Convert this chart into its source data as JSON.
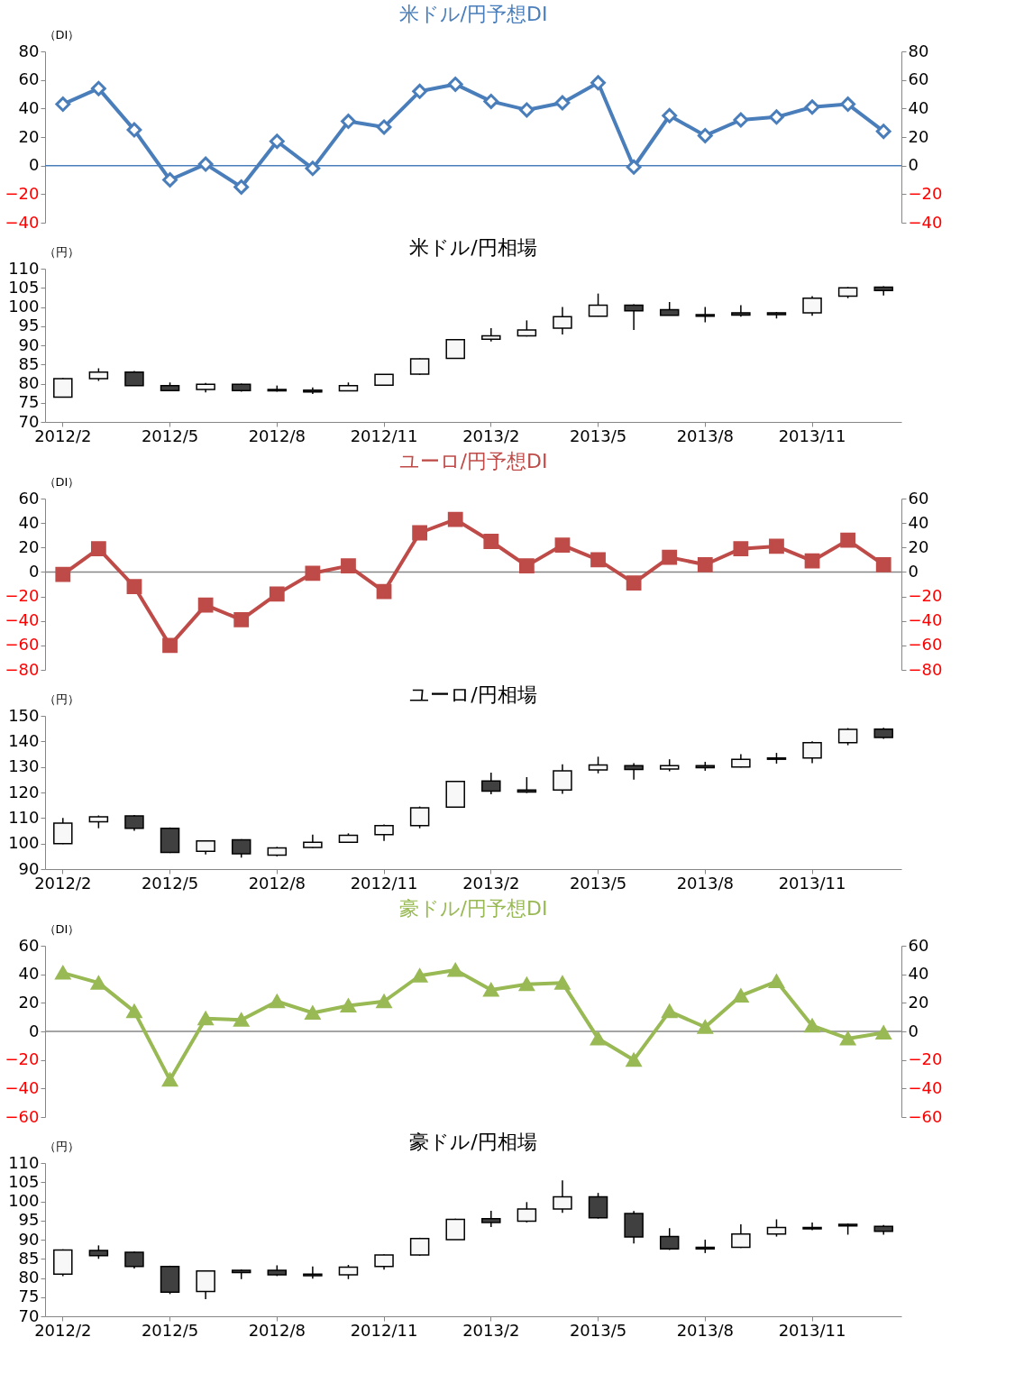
{
  "chart_data": [
    {
      "type": "line",
      "title": "米ドル/円予想DI",
      "ylabel": "（DI）",
      "categories": [
        "2012/2",
        null,
        null,
        "2012/5",
        null,
        null,
        "2012/8",
        null,
        null,
        "2012/11",
        null,
        null,
        "2013/2",
        null,
        null,
        "2013/5",
        null,
        null,
        "2013/8",
        null,
        null,
        "2013/11",
        null,
        null
      ],
      "series": [
        {
          "color": "#4a7ebb",
          "values": [
            43,
            54,
            25,
            -10,
            1,
            -15,
            17,
            -2,
            31,
            27,
            52,
            57,
            45,
            39,
            44,
            58,
            -1,
            35,
            21,
            32,
            34,
            41,
            43,
            24
          ]
        }
      ],
      "marker": "diamond",
      "ylim": [
        -40,
        80
      ],
      "yticks": [
        -40,
        -20,
        0,
        20,
        40,
        60,
        80
      ],
      "y2lim": [
        -40,
        80
      ],
      "y2ticks": [
        -40,
        -20,
        0,
        20,
        40,
        60,
        80
      ],
      "ref_lines": [
        {
          "axis": "y",
          "value": 0,
          "color": "#4a7ebb"
        }
      ],
      "tick_labels": "y",
      "grid": false
    },
    {
      "type": "candlestick",
      "title": "米ドル/円相場",
      "ylabel": "（円）",
      "categories": [
        "2012/2",
        null,
        null,
        "2012/5",
        null,
        null,
        "2012/8",
        null,
        null,
        "2012/11",
        null,
        null,
        "2013/2",
        null,
        null,
        "2013/5",
        null,
        null,
        "2013/8",
        null,
        null,
        "2013/11",
        null,
        null
      ],
      "ohlc": [
        [
          76.5,
          81.5,
          76.5,
          81.3
        ],
        [
          81.3,
          84,
          80.7,
          83
        ],
        [
          83,
          83.3,
          79.5,
          79.5
        ],
        [
          79.5,
          80.3,
          78,
          78.2
        ],
        [
          78.5,
          80.2,
          77.7,
          79.8
        ],
        [
          79.8,
          80,
          77.9,
          78.2
        ],
        [
          78.5,
          79.5,
          77.9,
          78.1
        ],
        [
          78.3,
          79,
          77.3,
          77.8
        ],
        [
          78.1,
          80.3,
          78,
          79.5
        ],
        [
          79.6,
          82.5,
          79.5,
          82.4
        ],
        [
          82.5,
          86.6,
          82.3,
          86.5
        ],
        [
          86.6,
          91.6,
          86.5,
          91.5
        ],
        [
          91.6,
          94.5,
          91,
          92.5
        ],
        [
          92.5,
          96.5,
          92.3,
          94
        ],
        [
          94.5,
          100,
          92.8,
          97.5
        ],
        [
          97.6,
          103.5,
          97.5,
          100.5
        ],
        [
          100.5,
          100.7,
          94,
          99
        ],
        [
          99.3,
          101.3,
          97.8,
          97.8
        ],
        [
          98,
          100,
          96,
          97.6
        ],
        [
          98.5,
          100.5,
          97.5,
          97.9
        ],
        [
          98.5,
          98.7,
          97,
          98
        ],
        [
          98.5,
          102.8,
          97.7,
          102.3
        ],
        [
          102.8,
          105.2,
          102.3,
          105
        ],
        [
          105.2,
          105.4,
          103,
          104.3
        ]
      ],
      "ylim": [
        70,
        110
      ],
      "yticks": [
        70,
        75,
        80,
        85,
        90,
        95,
        100,
        105,
        110
      ],
      "grid": false
    },
    {
      "type": "line",
      "title": "ユーロ/円予想DI",
      "ylabel": "（DI）",
      "categories": [
        "2012/2",
        null,
        null,
        "2012/5",
        null,
        null,
        "2012/8",
        null,
        null,
        "2012/11",
        null,
        null,
        "2013/2",
        null,
        null,
        "2013/5",
        null,
        null,
        "2013/8",
        null,
        null,
        "2013/11",
        null,
        null
      ],
      "series": [
        {
          "color": "#be4b48",
          "values": [
            -2,
            19,
            -12,
            -60,
            -27,
            -39,
            -18,
            -1,
            5,
            -16,
            32,
            43,
            25,
            5,
            22,
            10,
            -9,
            12,
            6,
            19,
            21,
            9,
            26,
            6
          ]
        }
      ],
      "marker": "square",
      "ylim": [
        -80,
        60
      ],
      "yticks": [
        -80,
        -60,
        -40,
        -20,
        0,
        20,
        40,
        60
      ],
      "y2lim": [
        -80,
        60
      ],
      "y2ticks": [
        -80,
        -60,
        -40,
        -20,
        0,
        20,
        40,
        60
      ],
      "ref_lines": [
        {
          "axis": "y",
          "value": 0,
          "color": "#868686"
        }
      ],
      "tick_labels": "y",
      "grid": false
    },
    {
      "type": "candlestick",
      "title": "ユーロ/円相場",
      "ylabel": "（円）",
      "categories": [
        "2012/2",
        null,
        null,
        "2012/5",
        null,
        null,
        "2012/8",
        null,
        null,
        "2012/11",
        null,
        null,
        "2013/2",
        null,
        null,
        "2013/5",
        null,
        null,
        "2013/8",
        null,
        null,
        "2013/11",
        null,
        null
      ],
      "ohlc": [
        [
          100,
          110,
          99.8,
          108
        ],
        [
          108.5,
          111,
          106,
          110.5
        ],
        [
          110.8,
          111.2,
          105,
          106
        ],
        [
          106,
          106.3,
          96.3,
          96.5
        ],
        [
          97,
          101.2,
          95.7,
          101
        ],
        [
          101.5,
          101.7,
          94.5,
          96
        ],
        [
          95.5,
          98.7,
          95,
          98.3
        ],
        [
          98.5,
          103.5,
          98.3,
          100.5
        ],
        [
          100.5,
          104,
          100.3,
          103.2
        ],
        [
          103.5,
          107.5,
          101,
          107
        ],
        [
          107,
          114.5,
          106,
          114
        ],
        [
          114.3,
          124.5,
          114,
          124.3
        ],
        [
          124.5,
          127.8,
          119.3,
          120.5
        ],
        [
          121,
          126,
          119.8,
          120.2
        ],
        [
          121,
          131,
          119.5,
          128.5
        ],
        [
          128.8,
          134,
          127.5,
          130.8
        ],
        [
          130.5,
          131.5,
          125,
          129
        ],
        [
          129.2,
          133,
          128.3,
          130.5
        ],
        [
          130.5,
          132,
          128.5,
          129.7
        ],
        [
          130,
          135,
          129.8,
          133
        ],
        [
          133.5,
          135.5,
          131.3,
          133
        ],
        [
          133.5,
          140,
          131.5,
          139.5
        ],
        [
          139.5,
          145.2,
          138.5,
          144.7
        ],
        [
          144.8,
          145.3,
          141,
          141.5
        ]
      ],
      "ylim": [
        90,
        150
      ],
      "yticks": [
        90,
        100,
        110,
        120,
        130,
        140,
        150
      ],
      "grid": false
    },
    {
      "type": "line",
      "title": "豪ドル/円予想DI",
      "ylabel": "（DI）",
      "categories": [
        "2012/2",
        null,
        null,
        "2012/5",
        null,
        null,
        "2012/8",
        null,
        null,
        "2012/11",
        null,
        null,
        "2013/2",
        null,
        null,
        "2013/5",
        null,
        null,
        "2013/8",
        null,
        null,
        "2013/11",
        null,
        null
      ],
      "series": [
        {
          "color": "#98b954",
          "values": [
            41,
            34,
            14,
            -34,
            9,
            8,
            21,
            13,
            18,
            21,
            39,
            43,
            29,
            33,
            34,
            -5,
            -20,
            14,
            3,
            25,
            35,
            4,
            -5,
            -1
          ]
        }
      ],
      "marker": "triangle",
      "ylim": [
        -60,
        60
      ],
      "yticks": [
        -60,
        -40,
        -20,
        0,
        20,
        40,
        60
      ],
      "y2lim": [
        -60,
        60
      ],
      "y2ticks": [
        -60,
        -40,
        -20,
        0,
        20,
        40,
        60
      ],
      "ref_lines": [
        {
          "axis": "y",
          "value": 0,
          "color": "#868686"
        }
      ],
      "tick_labels": "y",
      "grid": false
    },
    {
      "type": "candlestick",
      "title": "豪ドル/円相場",
      "ylabel": "（円）",
      "categories": [
        "2012/2",
        null,
        null,
        "2012/5",
        null,
        null,
        "2012/8",
        null,
        null,
        "2012/11",
        null,
        null,
        "2013/2",
        null,
        null,
        "2013/5",
        null,
        null,
        "2013/8",
        null,
        null,
        "2013/11",
        null,
        null
      ],
      "ohlc": [
        [
          81,
          87.5,
          80.5,
          87.3
        ],
        [
          87.2,
          88.5,
          85,
          85.8
        ],
        [
          86.7,
          86.9,
          82.5,
          83
        ],
        [
          83,
          83.2,
          75.8,
          76.3
        ],
        [
          76.5,
          82,
          74.5,
          81.8
        ],
        [
          82,
          82.2,
          79.7,
          81.4
        ],
        [
          82,
          83.3,
          80.5,
          80.8
        ],
        [
          81,
          83,
          79.8,
          80.6
        ],
        [
          80.8,
          83.4,
          79.7,
          82.8
        ],
        [
          83,
          86.2,
          82.2,
          86
        ],
        [
          86,
          90.5,
          85.8,
          90.3
        ],
        [
          90,
          95.5,
          90,
          95.3
        ],
        [
          95.5,
          97.5,
          93.3,
          94.5
        ],
        [
          94.8,
          99.8,
          94.5,
          98
        ],
        [
          98,
          105.5,
          97,
          101.2
        ],
        [
          101.2,
          102.2,
          95.5,
          95.7
        ],
        [
          96.8,
          97.5,
          89,
          90.7
        ],
        [
          90.8,
          93,
          87.3,
          87.6
        ],
        [
          88,
          90,
          86.5,
          87.6
        ],
        [
          88,
          94,
          87.8,
          91.5
        ],
        [
          91.5,
          95.3,
          90.8,
          93.2
        ],
        [
          93.2,
          94.5,
          92.5,
          92.8
        ],
        [
          94,
          94.2,
          91.3,
          93.6
        ],
        [
          93.5,
          93.8,
          91.3,
          92.2
        ]
      ],
      "ylim": [
        70,
        110
      ],
      "yticks": [
        70,
        75,
        80,
        85,
        90,
        95,
        100,
        105,
        110
      ],
      "grid": false
    }
  ]
}
